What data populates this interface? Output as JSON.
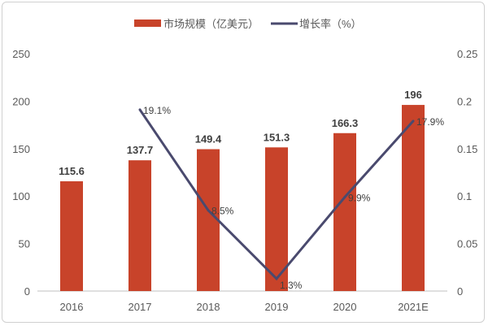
{
  "chart_data": {
    "type": "bar+line",
    "categories": [
      "2016",
      "2017",
      "2018",
      "2019",
      "2020",
      "2021E"
    ],
    "series": [
      {
        "name": "市场规模（亿美元）",
        "type": "bar",
        "axis": "left",
        "values": [
          115.6,
          137.7,
          149.4,
          151.3,
          166.3,
          196
        ],
        "labels": [
          "115.6",
          "137.7",
          "149.4",
          "151.3",
          "166.3",
          "196"
        ],
        "color": "#C8432A"
      },
      {
        "name": "增长率（%）",
        "type": "line",
        "axis": "right",
        "values": [
          null,
          0.191,
          0.085,
          0.013,
          0.099,
          0.179
        ],
        "labels": [
          "",
          "19.1%",
          "8.5%",
          "1.3%",
          "9.9%",
          "17.9%"
        ],
        "color": "#4A4A6E"
      }
    ],
    "left_axis": {
      "ylim": [
        0,
        250
      ],
      "ticks": [
        "0",
        "50",
        "100",
        "150",
        "200",
        "250"
      ]
    },
    "right_axis": {
      "ylim": [
        0,
        0.25
      ],
      "ticks": [
        "0",
        "0.05",
        "0.1",
        "0.15",
        "0.2",
        "0.25"
      ]
    },
    "legend": "top",
    "grid": false
  }
}
